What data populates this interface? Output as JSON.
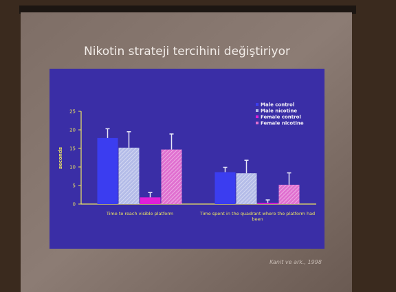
{
  "chart_data": {
    "type": "bar",
    "title": "Nikotin strateji tercihini değiştiriyor",
    "y_label": "seconds",
    "citation": "Kanit ve ark., 1998",
    "categories": [
      "Time to reach visible platform",
      "Time spent in the quadrant where the platform had been"
    ],
    "series": [
      {
        "name": "Male control",
        "color": "#3b3df0",
        "hatch": false,
        "values": [
          17.8,
          8.6
        ],
        "errors": [
          2.5,
          1.3
        ]
      },
      {
        "name": "Male nicotine",
        "color": "#b4bce8",
        "hatch": true,
        "values": [
          15.2,
          8.3
        ],
        "errors": [
          4.3,
          3.5
        ]
      },
      {
        "name": "Female control",
        "color": "#e020d8",
        "hatch": false,
        "values": [
          1.8,
          0.3
        ],
        "errors": [
          1.3,
          0.8
        ]
      },
      {
        "name": "Female nicotine",
        "color": "#e070d0",
        "hatch": true,
        "values": [
          14.7,
          5.2
        ],
        "errors": [
          4.2,
          3.2
        ]
      }
    ],
    "ylim": [
      0,
      25
    ],
    "yticks": [
      0,
      5,
      10,
      15,
      20,
      25
    ],
    "legend": "upper right"
  }
}
